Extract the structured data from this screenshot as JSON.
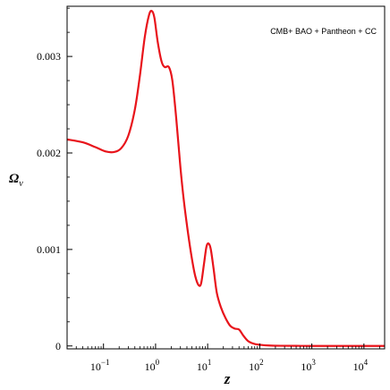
{
  "chart_data": {
    "type": "line",
    "title": "",
    "xlabel": "z",
    "ylabel_main": "Ω",
    "ylabel_sub": "ν",
    "x_scale": "log",
    "xlim": [
      0.02,
      25000
    ],
    "ylim": [
      -3e-05,
      0.00352
    ],
    "grid": false,
    "legend_placement": "top-right",
    "annotation": "CMB+ BAO + Pantheon + CC",
    "series_color": "#e8141b",
    "x_ticks": [
      {
        "value": 0.1,
        "base": "10",
        "exp": "−1"
      },
      {
        "value": 1,
        "base": "10",
        "exp": "0"
      },
      {
        "value": 10,
        "base": "10",
        "exp": "1"
      },
      {
        "value": 100,
        "base": "10",
        "exp": "2"
      },
      {
        "value": 1000,
        "base": "10",
        "exp": "3"
      },
      {
        "value": 10000,
        "base": "10",
        "exp": "4"
      }
    ],
    "y_ticks": [
      {
        "value": 0,
        "label": "0"
      },
      {
        "value": 0.001,
        "label": "0.001"
      },
      {
        "value": 0.002,
        "label": "0.002"
      },
      {
        "value": 0.003,
        "label": "0.003"
      }
    ],
    "series": [
      {
        "x": [
          0.02,
          0.04,
          0.07,
          0.11,
          0.16,
          0.22,
          0.3,
          0.4,
          0.5,
          0.62,
          0.75,
          0.85,
          0.95,
          1.1,
          1.3,
          1.5,
          1.8,
          2.1,
          2.5,
          3.0,
          3.5,
          4.2,
          5.0,
          5.8,
          6.7,
          7.5,
          8.5,
          9.5,
          10.5,
          11.5,
          13,
          15,
          18,
          22,
          27,
          33,
          40,
          48,
          60,
          80,
          110,
          150,
          250,
          500,
          1000,
          3000,
          10000,
          25000
        ],
        "y": [
          0.00214,
          0.00211,
          0.00206,
          0.002015,
          0.00201,
          0.00205,
          0.00218,
          0.00245,
          0.0028,
          0.0032,
          0.00343,
          0.00347,
          0.0034,
          0.00315,
          0.00295,
          0.00289,
          0.00289,
          0.00275,
          0.00235,
          0.00185,
          0.0015,
          0.00117,
          0.0009,
          0.00072,
          0.00063,
          0.00065,
          0.00085,
          0.00103,
          0.00106,
          0.001,
          0.0008,
          0.00055,
          0.0004,
          0.00029,
          0.00021,
          0.00018,
          0.00017,
          0.00011,
          5e-05,
          2e-05,
          1e-05,
          5e-06,
          2e-06,
          1e-06,
          0.0,
          0.0,
          0.0,
          0.0
        ]
      }
    ]
  }
}
